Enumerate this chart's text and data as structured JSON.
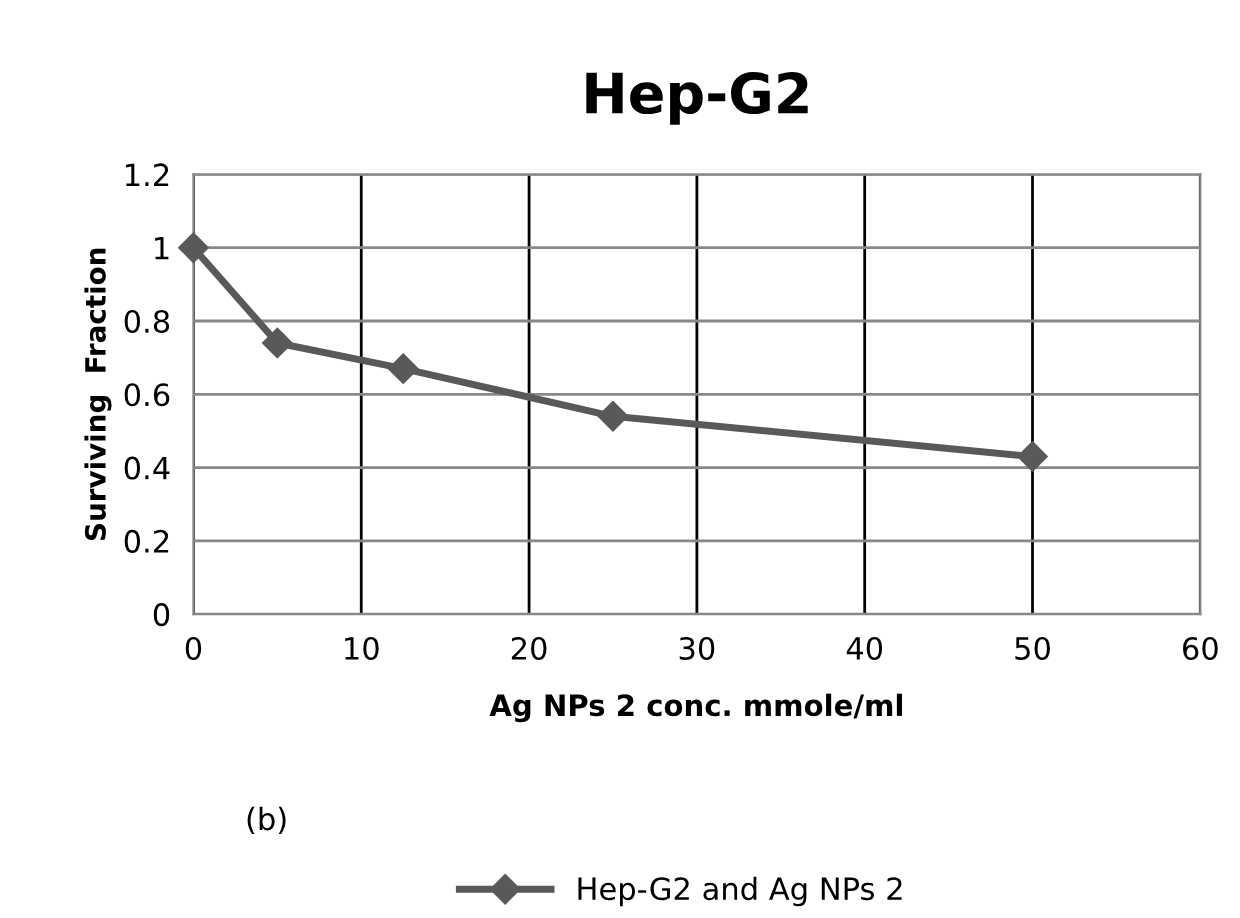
{
  "chart_data": {
    "type": "line",
    "title": "Hep-G2",
    "xlabel": "Ag NPs 2 conc. mmole/ml",
    "ylabel": "Surviving  Fraction",
    "x": [
      0,
      5,
      12.5,
      25,
      50
    ],
    "series": [
      {
        "name": "Hep-G2 and Ag NPs 2",
        "color": "#595959",
        "values": [
          1.0,
          0.74,
          0.67,
          0.54,
          0.43
        ]
      }
    ],
    "xlim": [
      0,
      60
    ],
    "xticks": [
      0,
      10,
      20,
      30,
      40,
      50,
      60
    ],
    "ylim": [
      0,
      1.2
    ],
    "yticks": [
      0,
      0.2,
      0.4,
      0.6,
      0.8,
      1,
      1.2
    ],
    "grid": true,
    "legend": "bottom",
    "marker": "diamond",
    "line_style": "solid",
    "annotations": [
      "(b)"
    ]
  }
}
